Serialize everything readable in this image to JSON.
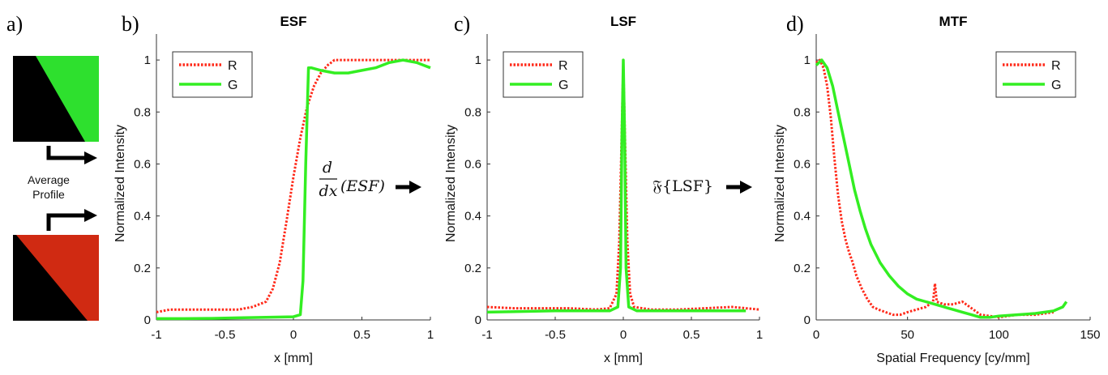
{
  "panel_labels": [
    "a)",
    "b)",
    "c)",
    "d)"
  ],
  "panel_a": {
    "label": "Average",
    "label2": "Profile",
    "green_color": "#2ee02e",
    "red_color": "#d02a12"
  },
  "operators": {
    "d": "d",
    "dx": "dx",
    "esf_arg": "(ESF)",
    "fourier": "𝔉{LSF}"
  },
  "chart_data": [
    {
      "id": "esf",
      "type": "line",
      "title": "ESF",
      "xlabel": "x [mm]",
      "ylabel": "Normalized Intensity",
      "xlim": [
        -1,
        1
      ],
      "ylim": [
        0,
        1.1
      ],
      "xticks": [
        -1,
        -0.5,
        0,
        0.5,
        1
      ],
      "xtick_labels": [
        "-1",
        "-0.5",
        "0",
        "0.5",
        "1"
      ],
      "yticks": [
        0,
        0.2,
        0.4,
        0.6,
        0.8,
        1
      ],
      "ytick_labels": [
        "0",
        "0.2",
        "0.4",
        "0.6",
        "0.8",
        "1"
      ],
      "legend": "top-left",
      "series": [
        {
          "name": "R",
          "style": "dotted",
          "color": "#ff2a1a",
          "x": [
            -1,
            -0.9,
            -0.8,
            -0.7,
            -0.6,
            -0.5,
            -0.4,
            -0.3,
            -0.2,
            -0.15,
            -0.1,
            -0.05,
            0,
            0.05,
            0.1,
            0.15,
            0.2,
            0.25,
            0.3,
            0.4,
            0.5,
            0.6,
            0.7,
            0.8,
            0.9,
            1
          ],
          "y": [
            0.03,
            0.04,
            0.04,
            0.04,
            0.04,
            0.04,
            0.04,
            0.05,
            0.07,
            0.12,
            0.22,
            0.38,
            0.55,
            0.7,
            0.82,
            0.9,
            0.95,
            0.98,
            1.0,
            1.0,
            1.0,
            1.0,
            1.0,
            1.0,
            1.0,
            1.0
          ]
        },
        {
          "name": "G",
          "style": "solid",
          "color": "#33ee22",
          "x": [
            -1,
            -0.8,
            -0.6,
            -0.4,
            -0.2,
            0,
            0.05,
            0.07,
            0.09,
            0.11,
            0.13,
            0.2,
            0.3,
            0.4,
            0.5,
            0.6,
            0.7,
            0.8,
            0.9,
            0.95,
            1
          ],
          "y": [
            0.005,
            0.005,
            0.006,
            0.008,
            0.01,
            0.012,
            0.02,
            0.15,
            0.6,
            0.97,
            0.97,
            0.96,
            0.95,
            0.95,
            0.96,
            0.97,
            0.99,
            1.0,
            0.99,
            0.98,
            0.97
          ]
        }
      ]
    },
    {
      "id": "lsf",
      "type": "line",
      "title": "LSF",
      "xlabel": "x [mm]",
      "ylabel": "Normalized Intensity",
      "xlim": [
        -1,
        1
      ],
      "ylim": [
        0,
        1.1
      ],
      "xticks": [
        -1,
        -0.5,
        0,
        0.5,
        1
      ],
      "xtick_labels": [
        "-1",
        "-0.5",
        "0",
        "0.5",
        "1"
      ],
      "yticks": [
        0,
        0.2,
        0.4,
        0.6,
        0.8,
        1
      ],
      "ytick_labels": [
        "0",
        "0.2",
        "0.4",
        "0.6",
        "0.8",
        "1"
      ],
      "legend": "top-left",
      "series": [
        {
          "name": "R",
          "style": "dotted",
          "color": "#ff2a1a",
          "x": [
            -1,
            -0.8,
            -0.6,
            -0.4,
            -0.2,
            -0.1,
            -0.05,
            -0.03,
            -0.01,
            0,
            0.01,
            0.03,
            0.05,
            0.08,
            0.2,
            0.4,
            0.6,
            0.8,
            1
          ],
          "y": [
            0.05,
            0.045,
            0.045,
            0.045,
            0.04,
            0.045,
            0.1,
            0.3,
            0.75,
            0.98,
            0.75,
            0.3,
            0.1,
            0.05,
            0.04,
            0.04,
            0.045,
            0.05,
            0.04
          ]
        },
        {
          "name": "G",
          "style": "solid",
          "color": "#33ee22",
          "x": [
            -1,
            -0.5,
            -0.1,
            -0.04,
            -0.02,
            -0.01,
            0,
            0.01,
            0.02,
            0.04,
            0.1,
            0.5,
            0.9
          ],
          "y": [
            0.03,
            0.035,
            0.035,
            0.05,
            0.2,
            0.7,
            1.0,
            0.7,
            0.2,
            0.05,
            0.035,
            0.035,
            0.035
          ]
        }
      ]
    },
    {
      "id": "mtf",
      "type": "line",
      "title": "MTF",
      "xlabel": "Spatial Frequency [cy/mm]",
      "ylabel": "Normalized Intensity",
      "xlim": [
        0,
        150
      ],
      "ylim": [
        0,
        1.1
      ],
      "xticks": [
        0,
        50,
        100,
        150
      ],
      "xtick_labels": [
        "0",
        "50",
        "100",
        "150"
      ],
      "yticks": [
        0,
        0.2,
        0.4,
        0.6,
        0.8,
        1
      ],
      "ytick_labels": [
        "0",
        "0.2",
        "0.4",
        "0.6",
        "0.8",
        "1"
      ],
      "legend": "top-right",
      "series": [
        {
          "name": "R",
          "style": "dotted",
          "color": "#ff2a1a",
          "x": [
            0,
            2,
            4,
            6,
            8,
            10,
            12,
            14,
            16,
            18,
            20,
            22,
            25,
            28,
            31,
            34,
            38,
            42,
            46,
            50,
            55,
            60,
            64,
            65,
            66,
            70,
            75,
            80,
            90,
            100,
            110,
            120,
            130
          ],
          "y": [
            0.99,
            1.0,
            0.97,
            0.9,
            0.78,
            0.62,
            0.48,
            0.38,
            0.31,
            0.26,
            0.22,
            0.17,
            0.12,
            0.08,
            0.05,
            0.04,
            0.03,
            0.02,
            0.02,
            0.03,
            0.04,
            0.05,
            0.07,
            0.14,
            0.07,
            0.06,
            0.06,
            0.07,
            0.02,
            0.01,
            0.02,
            0.02,
            0.03
          ]
        },
        {
          "name": "G",
          "style": "solid",
          "color": "#33ee22",
          "x": [
            0,
            3,
            6,
            9,
            12,
            15,
            18,
            21,
            24,
            27,
            30,
            35,
            40,
            45,
            50,
            55,
            60,
            65,
            70,
            75,
            80,
            85,
            90,
            95,
            100,
            110,
            120,
            130,
            135,
            137
          ],
          "y": [
            0.98,
            1.0,
            0.97,
            0.9,
            0.8,
            0.7,
            0.6,
            0.5,
            0.42,
            0.35,
            0.29,
            0.22,
            0.17,
            0.13,
            0.1,
            0.08,
            0.07,
            0.06,
            0.05,
            0.04,
            0.03,
            0.02,
            0.01,
            0.01,
            0.015,
            0.02,
            0.025,
            0.035,
            0.05,
            0.07
          ]
        }
      ]
    }
  ]
}
